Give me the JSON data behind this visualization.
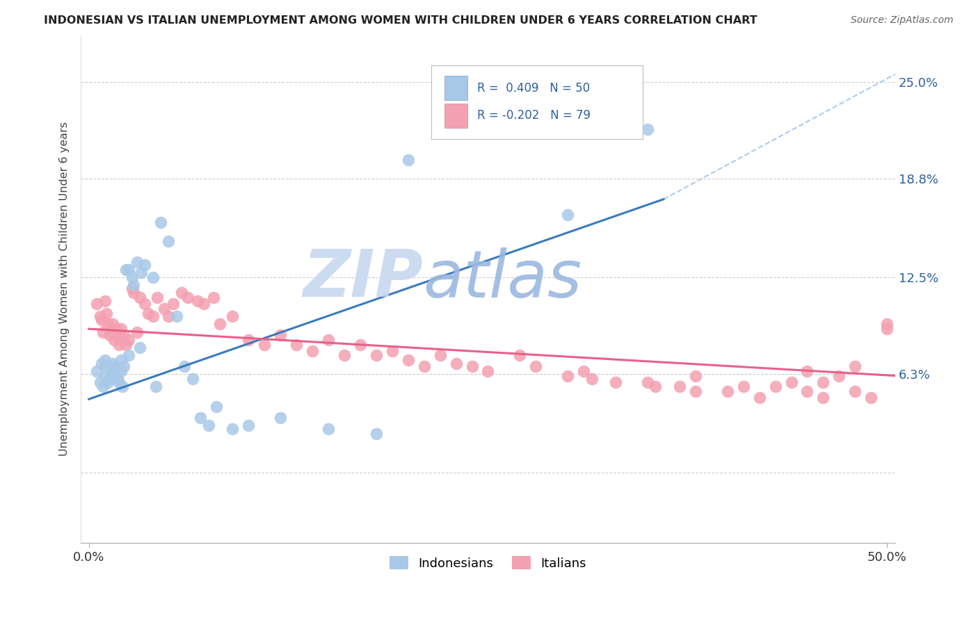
{
  "title": "INDONESIAN VS ITALIAN UNEMPLOYMENT AMONG WOMEN WITH CHILDREN UNDER 6 YEARS CORRELATION CHART",
  "source": "Source: ZipAtlas.com",
  "ylabel": "Unemployment Among Women with Children Under 6 years",
  "R_indonesian": 0.409,
  "N_indonesian": 50,
  "R_italian": -0.202,
  "N_italian": 79,
  "blue_color": "#a8c8e8",
  "pink_color": "#f4a0b0",
  "trend_blue": "#3a7abf",
  "trend_pink": "#e8608a",
  "trend_gray_dashed": "#aaccee",
  "label_color": "#3060a0",
  "background_color": "#ffffff",
  "watermark_zip": "#c8d8f0",
  "watermark_atlas": "#9ab8e0",
  "ytick_vals": [
    0.0,
    0.063,
    0.125,
    0.188,
    0.25
  ],
  "ytick_labels": [
    "",
    "6.3%",
    "12.5%",
    "18.8%",
    "25.0%"
  ],
  "xlim": [
    -0.005,
    0.505
  ],
  "ylim": [
    -0.045,
    0.28
  ],
  "ind_x": [
    0.005,
    0.007,
    0.008,
    0.009,
    0.01,
    0.01,
    0.01,
    0.012,
    0.013,
    0.014,
    0.015,
    0.015,
    0.016,
    0.017,
    0.018,
    0.019,
    0.02,
    0.02,
    0.021,
    0.022,
    0.023,
    0.025,
    0.025,
    0.027,
    0.028,
    0.03,
    0.032,
    0.033,
    0.035,
    0.04,
    0.042,
    0.045,
    0.05,
    0.055,
    0.06,
    0.065,
    0.07,
    0.075,
    0.08,
    0.09,
    0.1,
    0.12,
    0.15,
    0.18,
    0.2,
    0.22,
    0.25,
    0.28,
    0.3,
    0.35
  ],
  "ind_y": [
    0.065,
    0.058,
    0.07,
    0.055,
    0.062,
    0.068,
    0.072,
    0.058,
    0.06,
    0.063,
    0.065,
    0.07,
    0.068,
    0.062,
    0.06,
    0.058,
    0.065,
    0.072,
    0.055,
    0.068,
    0.13,
    0.075,
    0.13,
    0.125,
    0.12,
    0.135,
    0.08,
    0.128,
    0.133,
    0.125,
    0.055,
    0.16,
    0.148,
    0.1,
    0.068,
    0.06,
    0.035,
    0.03,
    0.042,
    0.028,
    0.03,
    0.035,
    0.028,
    0.025,
    0.2,
    0.23,
    0.22,
    0.218,
    0.165,
    0.22
  ],
  "ita_x": [
    0.005,
    0.007,
    0.008,
    0.009,
    0.01,
    0.011,
    0.012,
    0.013,
    0.014,
    0.015,
    0.016,
    0.017,
    0.018,
    0.019,
    0.02,
    0.021,
    0.022,
    0.023,
    0.025,
    0.027,
    0.028,
    0.03,
    0.032,
    0.035,
    0.037,
    0.04,
    0.043,
    0.047,
    0.05,
    0.053,
    0.058,
    0.062,
    0.068,
    0.072,
    0.078,
    0.082,
    0.09,
    0.1,
    0.11,
    0.12,
    0.13,
    0.14,
    0.15,
    0.16,
    0.17,
    0.18,
    0.19,
    0.2,
    0.21,
    0.22,
    0.23,
    0.24,
    0.25,
    0.27,
    0.28,
    0.3,
    0.31,
    0.33,
    0.35,
    0.37,
    0.38,
    0.4,
    0.41,
    0.42,
    0.43,
    0.44,
    0.45,
    0.46,
    0.47,
    0.48,
    0.49,
    0.5,
    0.315,
    0.355,
    0.38,
    0.45,
    0.46,
    0.48,
    0.5
  ],
  "ita_y": [
    0.108,
    0.1,
    0.098,
    0.09,
    0.11,
    0.102,
    0.095,
    0.088,
    0.092,
    0.095,
    0.085,
    0.092,
    0.088,
    0.082,
    0.092,
    0.085,
    0.088,
    0.082,
    0.085,
    0.118,
    0.115,
    0.09,
    0.112,
    0.108,
    0.102,
    0.1,
    0.112,
    0.105,
    0.1,
    0.108,
    0.115,
    0.112,
    0.11,
    0.108,
    0.112,
    0.095,
    0.1,
    0.085,
    0.082,
    0.088,
    0.082,
    0.078,
    0.085,
    0.075,
    0.082,
    0.075,
    0.078,
    0.072,
    0.068,
    0.075,
    0.07,
    0.068,
    0.065,
    0.075,
    0.068,
    0.062,
    0.065,
    0.058,
    0.058,
    0.055,
    0.062,
    0.052,
    0.055,
    0.048,
    0.055,
    0.058,
    0.052,
    0.048,
    0.062,
    0.052,
    0.048,
    0.095,
    0.06,
    0.055,
    0.052,
    0.065,
    0.058,
    0.068,
    0.092
  ],
  "trend_ind_start_x": 0.0,
  "trend_ind_start_y": 0.047,
  "trend_ind_end_x": 0.36,
  "trend_ind_end_y": 0.175,
  "trend_dashed_start_x": 0.36,
  "trend_dashed_start_y": 0.175,
  "trend_dashed_end_x": 0.505,
  "trend_dashed_end_y": 0.255,
  "trend_ita_start_x": 0.0,
  "trend_ita_start_y": 0.092,
  "trend_ita_end_x": 0.505,
  "trend_ita_end_y": 0.062
}
